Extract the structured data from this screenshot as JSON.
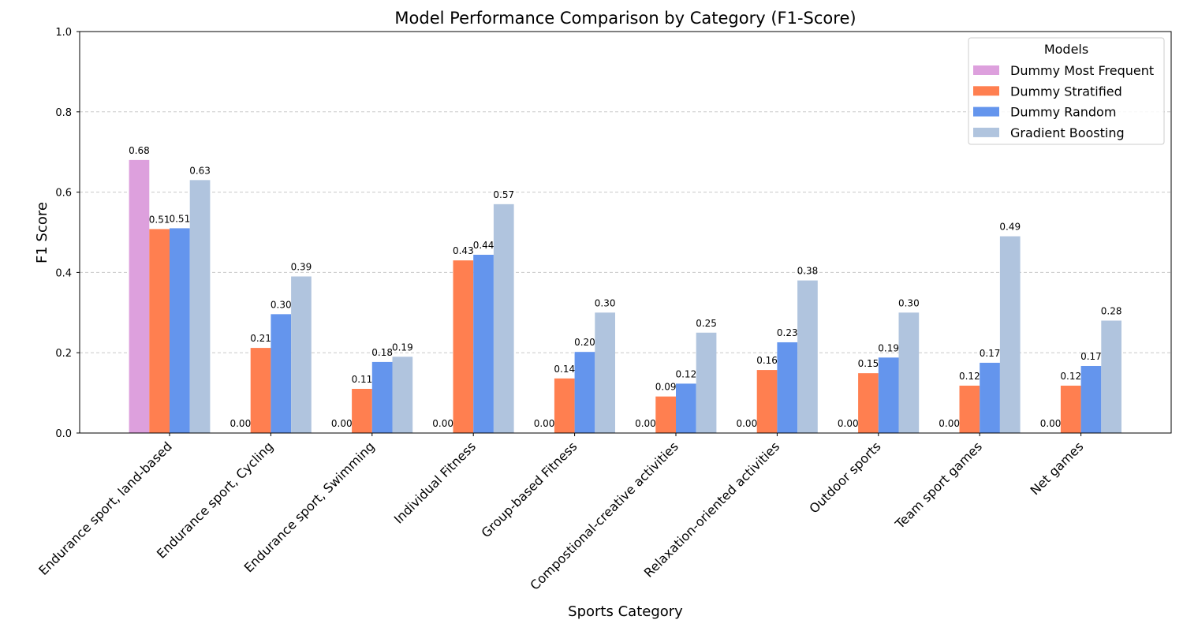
{
  "chart_data": {
    "type": "bar",
    "title": "Model Performance Comparison by Category (F1-Score)",
    "xlabel": "Sports Category",
    "ylabel": "F1 Score",
    "ylim": [
      0,
      1
    ],
    "yticks": [
      0,
      0.2,
      0.4,
      0.6,
      0.8,
      1
    ],
    "ytick_labels": [
      "0.0",
      "0.2",
      "0.4",
      "0.6",
      "0.8",
      "1.0"
    ],
    "grid": "y-dashed",
    "legend": {
      "title": "Models",
      "placement": "top-right"
    },
    "categories": [
      "Endurance sport, land-based",
      "Endurance sport, Cycling",
      "Endurance sport, Swimming",
      "Individual Fitness",
      "Group-based Fitness",
      "Compostional-creative activities",
      "Relaxation-oriented activities",
      "Outdoor sports",
      "Team sport games",
      "Net games"
    ],
    "series": [
      {
        "name": "Dummy Most Frequent",
        "color": "#dda0dd",
        "values": [
          0.68,
          0.0,
          0.0,
          0.0,
          0.0,
          0.0,
          0.0,
          0.0,
          0.0,
          0.0
        ],
        "labels": [
          "0.68",
          "0.00",
          "0.00",
          "0.00",
          "0.00",
          "0.00",
          "0.00",
          "0.00",
          "0.00",
          "0.00"
        ]
      },
      {
        "name": "Dummy Stratified",
        "color": "#ff7f50",
        "values": [
          0.508,
          0.212,
          0.11,
          0.43,
          0.136,
          0.091,
          0.157,
          0.149,
          0.118,
          0.118
        ],
        "labels": [
          "0.51",
          "0.21",
          "0.11",
          "0.43",
          "0.14",
          "0.09",
          "0.16",
          "0.15",
          "0.12",
          "0.12"
        ]
      },
      {
        "name": "Dummy Random",
        "color": "#6495ed",
        "values": [
          0.51,
          0.296,
          0.177,
          0.444,
          0.202,
          0.123,
          0.226,
          0.188,
          0.175,
          0.167
        ],
        "labels": [
          "0.51",
          "0.30",
          "0.18",
          "0.44",
          "0.20",
          "0.12",
          "0.23",
          "0.19",
          "0.17",
          "0.17"
        ]
      },
      {
        "name": "Gradient Boosting",
        "color": "#b0c4de",
        "values": [
          0.63,
          0.39,
          0.19,
          0.57,
          0.3,
          0.25,
          0.38,
          0.3,
          0.49,
          0.28
        ],
        "labels": [
          "0.63",
          "0.39",
          "0.19",
          "0.57",
          "0.30",
          "0.25",
          "0.38",
          "0.30",
          "0.49",
          "0.28"
        ]
      }
    ]
  }
}
